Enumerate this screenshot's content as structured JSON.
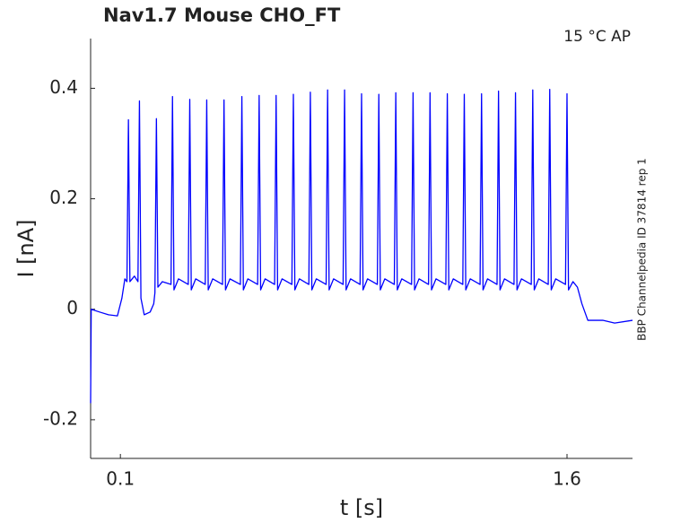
{
  "chart_data": {
    "type": "line",
    "title": "Nav1.7  Mouse  CHO_FT",
    "annotation": "15 °C  AP",
    "side_label": "BBP Channelpedia ID 37814 rep 1",
    "xlabel": "t [s]",
    "ylabel": "I [nA]",
    "color": "#0000ff",
    "xlim": [
      0,
      1.82
    ],
    "ylim": [
      -0.27,
      0.49
    ],
    "xticks": [
      0.1,
      1.6
    ],
    "yticks": [
      -0.2,
      0,
      0.2,
      0.4
    ],
    "grid": false,
    "x": [
      0,
      0.002,
      0.03,
      0.06,
      0.09,
      0.105,
      0.115,
      0.122,
      0.127,
      0.132,
      0.147,
      0.159,
      0.164,
      0.169,
      0.18,
      0.2,
      0.212,
      0.216,
      0.221,
      0.226,
      0.241,
      0.27,
      0.275,
      0.28,
      0.295,
      0.328,
      0.333,
      0.338,
      0.353,
      0.385,
      0.39,
      0.395,
      0.41,
      0.443,
      0.448,
      0.453,
      0.468,
      0.503,
      0.508,
      0.513,
      0.528,
      0.561,
      0.566,
      0.571,
      0.586,
      0.618,
      0.623,
      0.628,
      0.643,
      0.676,
      0.681,
      0.686,
      0.701,
      0.733,
      0.738,
      0.743,
      0.758,
      0.791,
      0.796,
      0.801,
      0.816,
      0.848,
      0.853,
      0.858,
      0.873,
      0.905,
      0.91,
      0.915,
      0.93,
      0.963,
      0.968,
      0.973,
      0.988,
      1.02,
      1.025,
      1.03,
      1.045,
      1.078,
      1.083,
      1.088,
      1.103,
      1.135,
      1.14,
      1.145,
      1.16,
      1.193,
      1.198,
      1.203,
      1.218,
      1.25,
      1.255,
      1.26,
      1.275,
      1.308,
      1.313,
      1.318,
      1.333,
      1.365,
      1.37,
      1.375,
      1.39,
      1.422,
      1.427,
      1.432,
      1.447,
      1.48,
      1.485,
      1.49,
      1.505,
      1.537,
      1.542,
      1.547,
      1.562,
      1.595,
      1.6,
      1.605,
      1.62,
      1.635,
      1.65,
      1.67,
      1.72,
      1.76,
      1.82
    ],
    "values": [
      -0.17,
      0.0,
      -0.005,
      -0.01,
      -0.012,
      0.02,
      0.055,
      0.05,
      0.343,
      0.05,
      0.06,
      0.05,
      0.377,
      0.02,
      -0.01,
      -0.005,
      0.01,
      0.03,
      0.345,
      0.04,
      0.05,
      0.045,
      0.385,
      0.035,
      0.055,
      0.045,
      0.38,
      0.035,
      0.055,
      0.045,
      0.379,
      0.035,
      0.055,
      0.045,
      0.379,
      0.035,
      0.055,
      0.045,
      0.385,
      0.035,
      0.055,
      0.045,
      0.387,
      0.035,
      0.055,
      0.045,
      0.387,
      0.035,
      0.055,
      0.045,
      0.389,
      0.035,
      0.055,
      0.045,
      0.393,
      0.035,
      0.055,
      0.045,
      0.397,
      0.035,
      0.055,
      0.045,
      0.397,
      0.035,
      0.055,
      0.045,
      0.39,
      0.035,
      0.055,
      0.045,
      0.389,
      0.035,
      0.055,
      0.045,
      0.392,
      0.035,
      0.055,
      0.045,
      0.392,
      0.035,
      0.055,
      0.045,
      0.392,
      0.035,
      0.055,
      0.045,
      0.39,
      0.035,
      0.055,
      0.045,
      0.389,
      0.035,
      0.055,
      0.045,
      0.39,
      0.035,
      0.055,
      0.045,
      0.395,
      0.035,
      0.055,
      0.045,
      0.392,
      0.035,
      0.055,
      0.045,
      0.397,
      0.035,
      0.055,
      0.045,
      0.398,
      0.035,
      0.055,
      0.045,
      0.39,
      0.035,
      0.05,
      0.04,
      0.01,
      -0.02,
      -0.02,
      -0.025,
      -0.02
    ]
  }
}
